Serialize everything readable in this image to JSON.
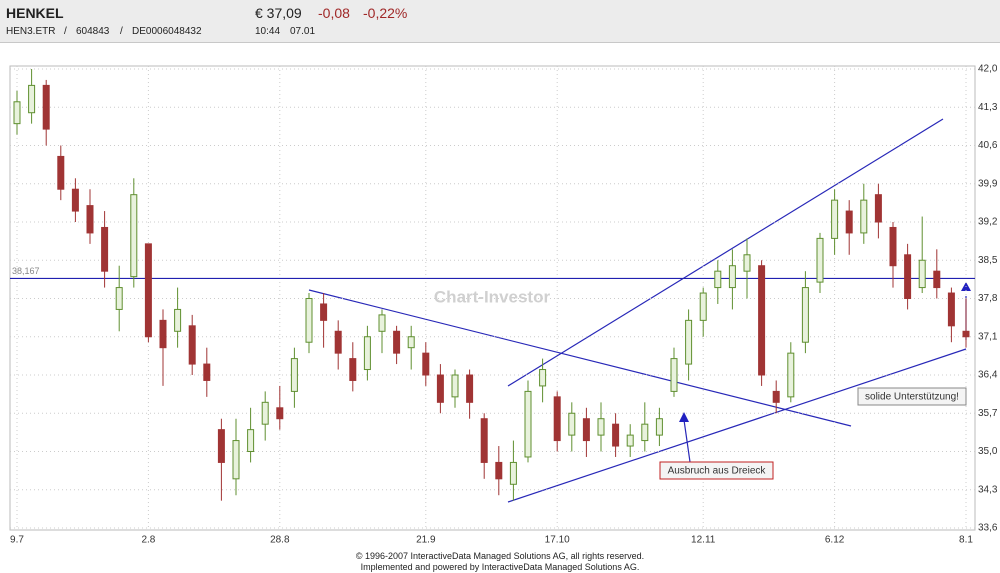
{
  "header": {
    "name": "HENKEL",
    "price": "€ 37,09",
    "change": "-0,08",
    "change_pct": "-0,22%",
    "symbol": "HEN3.ETR",
    "wkn": "604843",
    "isin": "DE0006048432",
    "time": "10:44",
    "date": "07.01"
  },
  "footer": [
    "© 1996-2007 InteractiveData Managed Solutions  AG, all rights reserved.",
    "Implemented and powered by  InteractiveData Managed Solutions  AG."
  ],
  "chart_data": {
    "type": "candlestick",
    "watermark": "Chart-Investor",
    "up_color": "#5f8f2f",
    "down_color": "#a03434",
    "categories": [
      "9.7",
      null,
      null,
      null,
      null,
      null,
      null,
      null,
      null,
      "2.8",
      null,
      null,
      null,
      null,
      null,
      null,
      null,
      null,
      "28.8",
      null,
      null,
      null,
      null,
      null,
      null,
      null,
      null,
      null,
      "21.9",
      null,
      null,
      null,
      null,
      null,
      null,
      null,
      null,
      "17.10",
      null,
      null,
      null,
      null,
      null,
      null,
      null,
      null,
      null,
      "12.11",
      null,
      null,
      null,
      null,
      null,
      null,
      null,
      null,
      "6.12",
      null,
      null,
      null,
      null,
      null,
      null,
      null,
      null,
      "8.1"
    ],
    "open": [
      41.0,
      41.2,
      41.7,
      40.4,
      39.8,
      39.5,
      39.1,
      37.6,
      38.2,
      38.8,
      37.4,
      37.2,
      37.3,
      36.6,
      35.4,
      34.5,
      35.0,
      35.5,
      35.8,
      36.1,
      37.0,
      37.7,
      37.2,
      36.7,
      36.5,
      37.2,
      37.2,
      36.9,
      36.8,
      36.4,
      36.0,
      36.4,
      35.6,
      34.8,
      34.4,
      34.9,
      36.2,
      36.0,
      35.3,
      35.6,
      35.3,
      35.5,
      35.1,
      35.2,
      35.3,
      36.1,
      36.6,
      37.4,
      38.0,
      38.0,
      38.3,
      38.4,
      36.1,
      36.0,
      37.0,
      38.1,
      38.9,
      39.4,
      39.0,
      39.7,
      39.1,
      38.6,
      38.0,
      38.3,
      37.9,
      37.2
    ],
    "high": [
      41.6,
      42.0,
      41.8,
      40.6,
      40.0,
      39.8,
      39.4,
      38.4,
      40.0,
      38.8,
      37.6,
      38.0,
      37.5,
      36.9,
      35.6,
      35.6,
      35.8,
      36.1,
      36.2,
      36.9,
      37.9,
      37.9,
      37.4,
      37.0,
      37.3,
      37.6,
      37.3,
      37.3,
      37.0,
      36.6,
      36.5,
      36.5,
      35.7,
      35.1,
      35.2,
      36.3,
      36.7,
      36.1,
      35.9,
      35.8,
      35.9,
      35.7,
      35.5,
      35.9,
      35.8,
      36.9,
      37.6,
      38.0,
      38.5,
      38.7,
      38.9,
      38.5,
      36.3,
      37.0,
      38.3,
      39.0,
      39.8,
      39.6,
      39.9,
      39.9,
      39.2,
      38.8,
      39.3,
      38.7,
      38.0,
      37.8
    ],
    "low": [
      40.8,
      41.0,
      40.6,
      39.6,
      39.2,
      38.8,
      38.0,
      37.2,
      38.0,
      37.0,
      36.2,
      36.9,
      36.4,
      36.0,
      34.1,
      34.2,
      34.8,
      35.2,
      35.4,
      35.8,
      36.8,
      36.9,
      36.5,
      36.1,
      36.3,
      36.8,
      36.6,
      36.5,
      36.2,
      35.7,
      35.8,
      35.6,
      34.5,
      34.2,
      34.1,
      34.8,
      35.9,
      35.0,
      35.0,
      34.9,
      35.0,
      34.9,
      34.9,
      35.0,
      35.1,
      36.0,
      36.3,
      37.1,
      37.7,
      37.6,
      37.8,
      36.2,
      35.7,
      35.9,
      36.8,
      37.9,
      38.6,
      38.6,
      38.8,
      38.9,
      38.0,
      37.6,
      37.9,
      37.8,
      37.0,
      36.9
    ],
    "close": [
      41.4,
      41.7,
      40.9,
      39.8,
      39.4,
      39.0,
      38.3,
      38.0,
      39.7,
      37.1,
      36.9,
      37.6,
      36.6,
      36.3,
      34.8,
      35.2,
      35.4,
      35.9,
      35.6,
      36.7,
      37.8,
      37.4,
      36.8,
      36.3,
      37.1,
      37.5,
      36.8,
      37.1,
      36.4,
      35.9,
      36.4,
      35.9,
      34.8,
      34.5,
      34.8,
      36.1,
      36.5,
      35.2,
      35.7,
      35.2,
      35.6,
      35.1,
      35.3,
      35.5,
      35.6,
      36.7,
      37.4,
      37.9,
      38.3,
      38.4,
      38.6,
      36.4,
      35.9,
      36.8,
      38.0,
      38.9,
      39.6,
      39.0,
      39.6,
      39.2,
      38.4,
      37.8,
      38.5,
      38.0,
      37.3,
      37.1
    ],
    "ylim": [
      33.6,
      42.0
    ],
    "yticks": [
      {
        "value": 33.6,
        "label": "33,6"
      },
      {
        "value": 34.3,
        "label": "34,3"
      },
      {
        "value": 35.0,
        "label": "35,0"
      },
      {
        "value": 35.7,
        "label": "35,7"
      },
      {
        "value": 36.4,
        "label": "36,4"
      },
      {
        "value": 37.1,
        "label": "37,1"
      },
      {
        "value": 37.8,
        "label": "37,8"
      },
      {
        "value": 38.5,
        "label": "38,5"
      },
      {
        "value": 39.2,
        "label": "39,2"
      },
      {
        "value": 39.9,
        "label": "39,9"
      },
      {
        "value": 40.6,
        "label": "40,6"
      },
      {
        "value": 41.3,
        "label": "41,3"
      },
      {
        "value": 42.0,
        "label": "42,0"
      }
    ],
    "hline": {
      "value": 38.167,
      "label": "38,167",
      "color": "#2020b0"
    },
    "annotations": [
      "solide Unterstützung!",
      "Ausbruch aus Dreieck"
    ],
    "grid": true
  }
}
